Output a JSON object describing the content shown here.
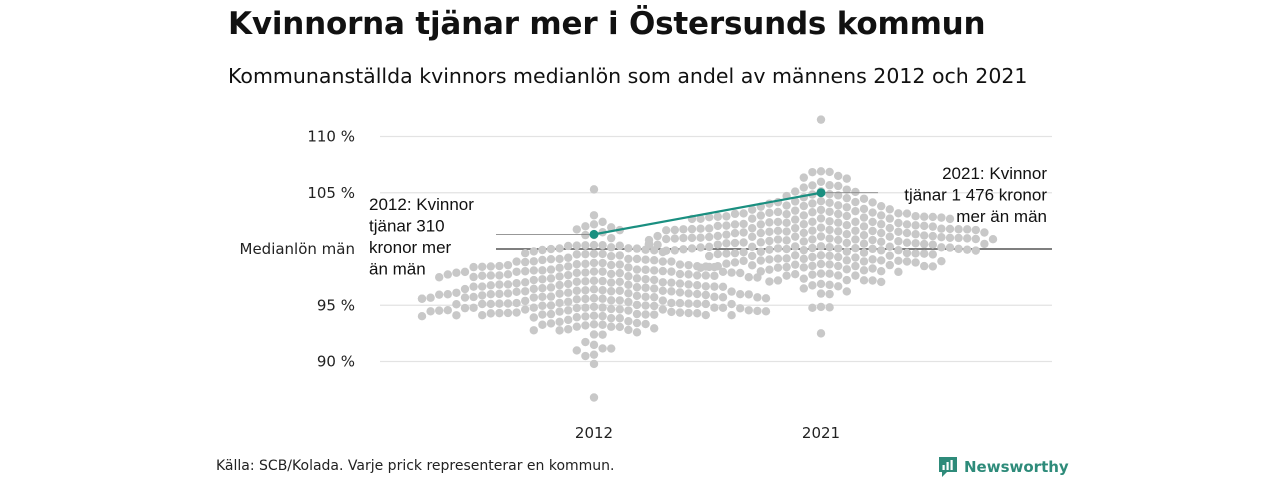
{
  "title": "Kvinnorna tjänar mer i Östersunds kommun",
  "subtitle": "Kommunanställda kvinnors medianlön som andel av männens 2012 och 2021",
  "source": "Källa: SCB/Kolada. Varje prick representerar en kommun.",
  "brand": {
    "name": "Newsworthy",
    "color": "#2e8b7a"
  },
  "colors": {
    "dots": "#c8c8c8",
    "highlight": "#1a8f80",
    "grid": "#e3e3e3",
    "ref_line": "#333333"
  },
  "chart_data": {
    "type": "scatter",
    "title": "Kvinnorna tjänar mer i Östersunds kommun",
    "subtitle": "Kommunanställda kvinnors medianlön som andel av männens 2012 och 2021",
    "categories": [
      "2012",
      "2021"
    ],
    "ylim": [
      86,
      112
    ],
    "y_ticks": [
      {
        "value": 90,
        "label": "90 %"
      },
      {
        "value": 95,
        "label": "95 %"
      },
      {
        "value": 100,
        "label": "Medianlön män"
      },
      {
        "value": 105,
        "label": "105 %"
      },
      {
        "value": 110,
        "label": "110 %"
      }
    ],
    "reference_line": {
      "value": 100,
      "label": "Medianlön män"
    },
    "distributions": [
      {
        "category": "2012",
        "min": 86.8,
        "max": 105.3,
        "median": 96.5,
        "spread": 6.2,
        "count": 290,
        "seed": 11
      },
      {
        "category": "2021",
        "min": 92.5,
        "max": 111.5,
        "median": 100.8,
        "spread": 6.0,
        "count": 290,
        "seed": 29
      }
    ],
    "highlight": {
      "name": "Östersund",
      "points": [
        {
          "x": "2012",
          "y": 101.3
        },
        {
          "x": "2021",
          "y": 105.0
        }
      ]
    },
    "annotations": [
      {
        "category": "2012",
        "lines": [
          "2012: Kvinnor",
          "tjänar 310",
          "kronor mer",
          "än män"
        ]
      },
      {
        "category": "2021",
        "lines": [
          "2021: Kvinnor",
          "tjänar 1 476 kronor",
          "mer än män"
        ]
      }
    ]
  }
}
